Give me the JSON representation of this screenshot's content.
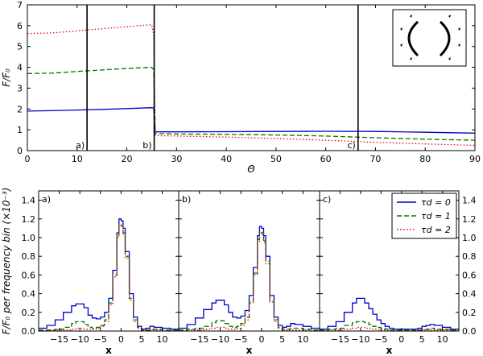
{
  "chart_data": [
    {
      "id": "top",
      "type": "line",
      "title": "",
      "xlabel": "Θ",
      "ylabel": "F/F₀",
      "xlim": [
        0,
        90
      ],
      "ylim": [
        0,
        7
      ],
      "xticks": [
        0,
        10,
        20,
        30,
        40,
        50,
        60,
        70,
        80,
        90
      ],
      "yticks": [
        0,
        1,
        2,
        3,
        4,
        5,
        6,
        7
      ],
      "vlines": [
        12,
        25.5,
        66.5
      ],
      "markers": [
        {
          "label": "a)",
          "x": 12
        },
        {
          "label": "b)",
          "x": 25.5
        },
        {
          "label": "c)",
          "x": 66.5
        }
      ],
      "series": [
        {
          "name": "τd = 0",
          "color": "#0000cc",
          "style": "solid",
          "x": [
            0,
            5,
            10,
            15,
            20,
            25,
            25.4,
            25.7,
            30,
            40,
            50,
            60,
            70,
            80,
            90
          ],
          "y": [
            1.9,
            1.92,
            1.95,
            1.98,
            2.02,
            2.06,
            2.05,
            0.9,
            0.9,
            0.91,
            0.92,
            0.93,
            0.92,
            0.88,
            0.84
          ]
        },
        {
          "name": "τd = 1",
          "color": "#007700",
          "style": "dashed",
          "x": [
            0,
            5,
            10,
            15,
            20,
            25,
            25.4,
            25.7,
            30,
            40,
            50,
            60,
            70,
            80,
            90
          ],
          "y": [
            3.7,
            3.72,
            3.8,
            3.87,
            3.95,
            4.0,
            3.9,
            0.82,
            0.8,
            0.78,
            0.75,
            0.7,
            0.62,
            0.55,
            0.5
          ]
        },
        {
          "name": "τd = 2",
          "color": "#ee0000",
          "style": "dotted",
          "x": [
            0,
            5,
            10,
            15,
            20,
            25,
            25.4,
            25.7,
            30,
            40,
            50,
            60,
            70,
            80,
            90
          ],
          "y": [
            5.62,
            5.65,
            5.75,
            5.85,
            5.95,
            6.05,
            5.6,
            0.72,
            0.7,
            0.65,
            0.58,
            0.5,
            0.4,
            0.32,
            0.25
          ]
        }
      ],
      "inset": "bipolar-shell-schematic"
    },
    {
      "id": "bottom",
      "type": "line",
      "ylabel": "F/F₀ per frequency bin (×10⁻³)",
      "xlabel": "x",
      "ylim": [
        0,
        1.5
      ],
      "yticks": [
        0.0,
        0.2,
        0.4,
        0.6,
        0.8,
        1.0,
        1.2,
        1.4
      ],
      "xticks": [
        -15,
        -10,
        -5,
        0,
        5,
        10
      ],
      "xtick_labels": [
        "−15",
        "−10",
        "−5",
        "0",
        "5",
        "10"
      ],
      "xlim": [
        -20,
        14
      ],
      "legend": {
        "position": "top-right",
        "entries": [
          "τd = 0",
          "τd = 1",
          "τd = 2"
        ]
      },
      "panels": [
        {
          "label": "a)",
          "series": [
            {
              "name": "τd = 0",
              "color": "#0000cc",
              "style": "solid",
              "x": [
                -20,
                -18,
                -16,
                -14,
                -12,
                -11,
                -10,
                -9,
                -8,
                -7,
                -6,
                -5,
                -4,
                -3,
                -2,
                -1,
                -0.5,
                0,
                0.5,
                1,
                2,
                3,
                4,
                5,
                6,
                7,
                8,
                10,
                12,
                14
              ],
              "y": [
                0.03,
                0.06,
                0.12,
                0.2,
                0.27,
                0.29,
                0.29,
                0.25,
                0.17,
                0.14,
                0.13,
                0.15,
                0.2,
                0.35,
                0.65,
                1.05,
                1.2,
                1.18,
                1.1,
                0.85,
                0.4,
                0.15,
                0.05,
                0.02,
                0.03,
                0.05,
                0.04,
                0.03,
                0.02,
                0.01
              ]
            },
            {
              "name": "τd = 1",
              "color": "#007700",
              "style": "dashed",
              "x": [
                -20,
                -18,
                -16,
                -14,
                -12,
                -11,
                -10,
                -9,
                -8,
                -7,
                -6,
                -5,
                -4,
                -3,
                -2,
                -1,
                -0.5,
                0,
                0.5,
                1,
                2,
                3,
                4,
                5,
                6,
                7,
                8,
                10,
                12,
                14
              ],
              "y": [
                0.01,
                0.01,
                0.02,
                0.04,
                0.08,
                0.1,
                0.1,
                0.07,
                0.04,
                0.03,
                0.04,
                0.06,
                0.12,
                0.3,
                0.6,
                1.02,
                1.15,
                1.13,
                1.05,
                0.8,
                0.35,
                0.12,
                0.04,
                0.01,
                0.01,
                0.02,
                0.02,
                0.01,
                0.01,
                0.0
              ]
            },
            {
              "name": "τd = 2",
              "color": "#ee0000",
              "style": "dotted",
              "x": [
                -20,
                -18,
                -16,
                -14,
                -12,
                -11,
                -10,
                -9,
                -8,
                -7,
                -6,
                -5,
                -4,
                -3,
                -2,
                -1,
                -0.5,
                0,
                0.5,
                1,
                2,
                3,
                4,
                5,
                6,
                7,
                8,
                10,
                12,
                14
              ],
              "y": [
                0.0,
                0.01,
                0.01,
                0.01,
                0.02,
                0.03,
                0.03,
                0.02,
                0.02,
                0.02,
                0.03,
                0.05,
                0.1,
                0.28,
                0.58,
                1.0,
                1.13,
                1.11,
                1.03,
                0.78,
                0.33,
                0.1,
                0.03,
                0.01,
                0.0,
                0.01,
                0.01,
                0.0,
                0.0,
                0.0
              ]
            }
          ]
        },
        {
          "label": "b)",
          "series": [
            {
              "name": "τd = 0",
              "color": "#0000cc",
              "style": "solid",
              "x": [
                -20,
                -18,
                -16,
                -14,
                -12,
                -11,
                -10,
                -9,
                -8,
                -7,
                -6,
                -5,
                -4,
                -3,
                -2,
                -1,
                -0.5,
                0,
                0.5,
                1,
                2,
                3,
                4,
                5,
                6,
                7,
                8,
                10,
                12,
                14
              ],
              "y": [
                0.03,
                0.07,
                0.14,
                0.23,
                0.3,
                0.33,
                0.33,
                0.28,
                0.2,
                0.15,
                0.14,
                0.16,
                0.22,
                0.38,
                0.68,
                1.02,
                1.12,
                1.1,
                1.02,
                0.8,
                0.38,
                0.15,
                0.06,
                0.04,
                0.05,
                0.08,
                0.07,
                0.05,
                0.03,
                0.01
              ]
            },
            {
              "name": "τd = 1",
              "color": "#007700",
              "style": "dashed",
              "x": [
                -20,
                -18,
                -16,
                -14,
                -12,
                -11,
                -10,
                -9,
                -8,
                -7,
                -6,
                -5,
                -4,
                -3,
                -2,
                -1,
                -0.5,
                0,
                0.5,
                1,
                2,
                3,
                4,
                5,
                6,
                7,
                8,
                10,
                12,
                14
              ],
              "y": [
                0.01,
                0.02,
                0.03,
                0.05,
                0.09,
                0.11,
                0.11,
                0.08,
                0.05,
                0.04,
                0.05,
                0.08,
                0.15,
                0.32,
                0.62,
                0.98,
                1.07,
                1.05,
                0.97,
                0.75,
                0.33,
                0.12,
                0.04,
                0.02,
                0.02,
                0.03,
                0.03,
                0.02,
                0.01,
                0.0
              ]
            },
            {
              "name": "τd = 2",
              "color": "#ee0000",
              "style": "dotted",
              "x": [
                -20,
                -18,
                -16,
                -14,
                -12,
                -11,
                -10,
                -9,
                -8,
                -7,
                -6,
                -5,
                -4,
                -3,
                -2,
                -1,
                -0.5,
                0,
                0.5,
                1,
                2,
                3,
                4,
                5,
                6,
                7,
                8,
                10,
                12,
                14
              ],
              "y": [
                0.0,
                0.01,
                0.01,
                0.02,
                0.03,
                0.04,
                0.04,
                0.03,
                0.02,
                0.02,
                0.03,
                0.06,
                0.12,
                0.3,
                0.6,
                0.96,
                1.05,
                1.03,
                0.95,
                0.72,
                0.31,
                0.1,
                0.03,
                0.01,
                0.01,
                0.01,
                0.01,
                0.01,
                0.0,
                0.0
              ]
            }
          ]
        },
        {
          "label": "c)",
          "series": [
            {
              "name": "τd = 0",
              "color": "#0000cc",
              "style": "solid",
              "x": [
                -20,
                -18,
                -16,
                -14,
                -12,
                -11,
                -10,
                -9,
                -8,
                -7,
                -6,
                -5,
                -4,
                -3,
                -2,
                -1,
                0,
                1,
                2,
                3,
                4,
                5,
                6,
                7,
                8,
                10,
                12,
                14
              ],
              "y": [
                0.02,
                0.05,
                0.1,
                0.2,
                0.3,
                0.35,
                0.35,
                0.3,
                0.24,
                0.18,
                0.12,
                0.08,
                0.05,
                0.03,
                0.02,
                0.02,
                0.02,
                0.02,
                0.02,
                0.02,
                0.03,
                0.05,
                0.06,
                0.07,
                0.06,
                0.04,
                0.02,
                0.01
              ]
            },
            {
              "name": "τd = 1",
              "color": "#007700",
              "style": "dashed",
              "x": [
                -20,
                -18,
                -16,
                -14,
                -12,
                -11,
                -10,
                -9,
                -8,
                -7,
                -6,
                -5,
                -4,
                -3,
                -2,
                -1,
                0,
                1,
                2,
                3,
                4,
                5,
                6,
                7,
                8,
                10,
                12,
                14
              ],
              "y": [
                0.01,
                0.02,
                0.03,
                0.06,
                0.09,
                0.1,
                0.1,
                0.09,
                0.07,
                0.05,
                0.04,
                0.03,
                0.02,
                0.01,
                0.01,
                0.01,
                0.01,
                0.01,
                0.01,
                0.01,
                0.01,
                0.02,
                0.02,
                0.03,
                0.02,
                0.02,
                0.01,
                0.0
              ]
            },
            {
              "name": "τd = 2",
              "color": "#ee0000",
              "style": "dotted",
              "x": [
                -20,
                -18,
                -16,
                -14,
                -12,
                -11,
                -10,
                -9,
                -8,
                -7,
                -6,
                -5,
                -4,
                -3,
                -2,
                -1,
                0,
                1,
                2,
                3,
                4,
                5,
                6,
                7,
                8,
                10,
                12,
                14
              ],
              "y": [
                0.0,
                0.01,
                0.01,
                0.02,
                0.03,
                0.04,
                0.04,
                0.03,
                0.03,
                0.02,
                0.02,
                0.01,
                0.01,
                0.01,
                0.0,
                0.0,
                0.0,
                0.0,
                0.0,
                0.0,
                0.01,
                0.01,
                0.01,
                0.01,
                0.01,
                0.01,
                0.0,
                0.0
              ]
            }
          ]
        }
      ]
    }
  ]
}
